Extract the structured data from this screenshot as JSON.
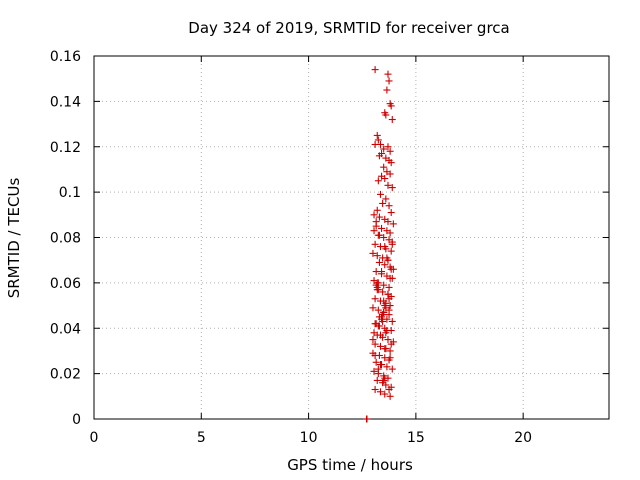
{
  "chart_data": {
    "type": "scatter",
    "title": "Day 324 of 2019, SRMTID for receiver grca",
    "xlabel": "GPS time / hours",
    "ylabel": "SRMTID / TECUs",
    "xlim": [
      0,
      24
    ],
    "ylim": [
      0,
      0.16
    ],
    "xticks": [
      0,
      5,
      10,
      15,
      20
    ],
    "yticks": [
      0,
      0.02,
      0.04,
      0.06,
      0.08,
      0.1,
      0.12,
      0.14,
      0.16
    ],
    "xtick_labels": [
      "0",
      "5",
      "10",
      "15",
      "20"
    ],
    "ytick_labels": [
      "0",
      "0.02",
      "0.04",
      "0.06",
      "0.08",
      "0.1",
      "0.12",
      "0.14",
      "0.16"
    ],
    "grid": true,
    "marker": "+",
    "color": "#cc0000",
    "series": [
      {
        "name": "SRMTID",
        "x": [
          13.1,
          13.7,
          13.75,
          13.65,
          13.8,
          13.85,
          13.55,
          13.6,
          13.9,
          13.2,
          13.25,
          13.35,
          13.5,
          13.7,
          13.8,
          13.3,
          13.4,
          13.75,
          13.6,
          13.85,
          13.1,
          13.5,
          13.65,
          13.8,
          13.4,
          13.55,
          13.25,
          13.7,
          13.9,
          13.35,
          13.6,
          13.45,
          13.75,
          13.2,
          13.85,
          13.05,
          13.3,
          13.55,
          13.7,
          13.95,
          13.15,
          13.4,
          13.65,
          13.8,
          13.25,
          13.5,
          13.75,
          13.9,
          13.1,
          13.35,
          13.6,
          13.85,
          13.0,
          13.2,
          13.45,
          13.7,
          13.3,
          13.55,
          13.8,
          13.95,
          13.15,
          13.4,
          13.65,
          13.9,
          13.05,
          13.25,
          13.5,
          13.75,
          13.2,
          13.45,
          13.7,
          13.85,
          13.1,
          13.35,
          13.6,
          13.8,
          13.0,
          13.25,
          13.5,
          13.75,
          13.4,
          13.65,
          13.9,
          13.15,
          13.3,
          13.55,
          13.85,
          13.05,
          13.2,
          13.45,
          13.7,
          13.95,
          13.1,
          13.35,
          13.6,
          13.8,
          13.0,
          13.3,
          13.55,
          13.75,
          13.15,
          13.4,
          13.65,
          13.9,
          13.05,
          13.25,
          13.5,
          13.7,
          13.2,
          13.45,
          13.6,
          13.85,
          13.1,
          13.35,
          13.55,
          13.8,
          13.0,
          13.25,
          13.5,
          13.75,
          13.15,
          13.4,
          13.65,
          13.9,
          13.05,
          13.3,
          13.55,
          13.7,
          13.2,
          13.45,
          13.6,
          13.85,
          13.1,
          13.35,
          13.55,
          13.8,
          13.25,
          13.5,
          13.75,
          13.4,
          13.65,
          13.15,
          13.3,
          13.55,
          13.7,
          13.85,
          13.2,
          13.45,
          13.6,
          13.1,
          13.35,
          13.55,
          13.8,
          13.25,
          13.5,
          13.75,
          12.7,
          12.72
        ],
        "y": [
          0.154,
          0.152,
          0.149,
          0.145,
          0.139,
          0.138,
          0.135,
          0.134,
          0.132,
          0.125,
          0.123,
          0.121,
          0.119,
          0.12,
          0.118,
          0.116,
          0.117,
          0.114,
          0.115,
          0.113,
          0.121,
          0.111,
          0.109,
          0.108,
          0.107,
          0.106,
          0.105,
          0.103,
          0.102,
          0.099,
          0.097,
          0.095,
          0.094,
          0.092,
          0.091,
          0.09,
          0.089,
          0.088,
          0.087,
          0.086,
          0.085,
          0.084,
          0.083,
          0.082,
          0.081,
          0.08,
          0.079,
          0.078,
          0.077,
          0.076,
          0.075,
          0.074,
          0.073,
          0.072,
          0.071,
          0.07,
          0.069,
          0.068,
          0.067,
          0.066,
          0.065,
          0.064,
          0.063,
          0.062,
          0.061,
          0.06,
          0.059,
          0.058,
          0.057,
          0.056,
          0.055,
          0.054,
          0.053,
          0.052,
          0.051,
          0.05,
          0.049,
          0.048,
          0.047,
          0.046,
          0.045,
          0.044,
          0.043,
          0.042,
          0.041,
          0.04,
          0.039,
          0.038,
          0.037,
          0.036,
          0.035,
          0.034,
          0.033,
          0.032,
          0.031,
          0.03,
          0.029,
          0.028,
          0.027,
          0.026,
          0.025,
          0.024,
          0.023,
          0.022,
          0.021,
          0.02,
          0.019,
          0.018,
          0.017,
          0.016,
          0.015,
          0.014,
          0.013,
          0.012,
          0.011,
          0.01,
          0.035,
          0.041,
          0.047,
          0.053,
          0.059,
          0.065,
          0.071,
          0.077,
          0.083,
          0.045,
          0.05,
          0.055,
          0.06,
          0.043,
          0.038,
          0.033,
          0.028,
          0.024,
          0.018,
          0.062,
          0.057,
          0.052,
          0.048,
          0.044,
          0.039,
          0.087,
          0.081,
          0.076,
          0.07,
          0.066,
          0.058,
          0.046,
          0.049,
          0.042,
          0.037,
          0.031,
          0.027,
          0.022,
          0.017,
          0.013,
          0.0,
          0.0
        ]
      }
    ]
  }
}
